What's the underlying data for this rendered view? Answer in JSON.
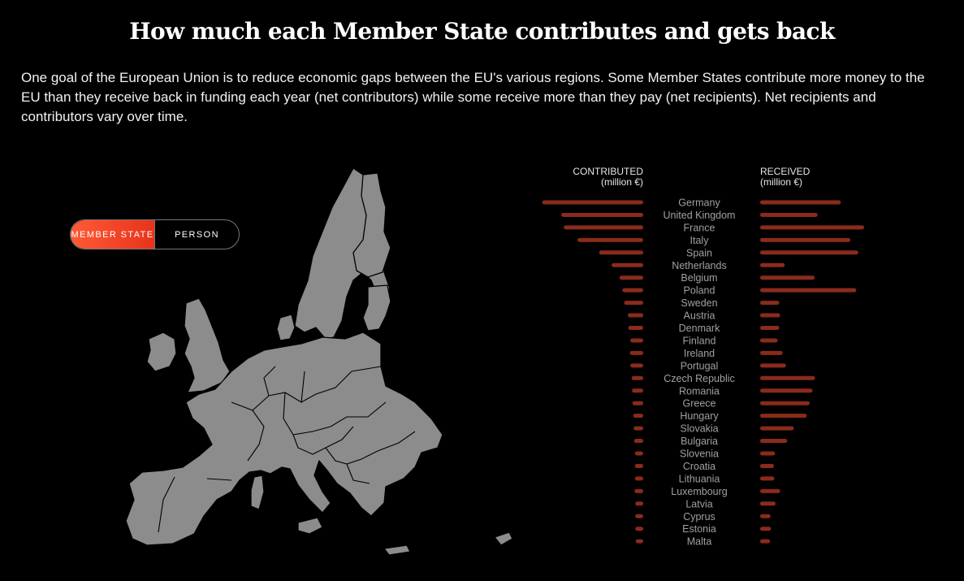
{
  "header": {
    "title": "How much each Member State contributes and gets back",
    "intro": "One goal of the European Union is to reduce economic gaps between the EU's various regions. Some Member States contribute more money to the EU than they receive back in funding each year (net contributors) while some receive more than they pay (net recipients). Net recipients and contributors vary over time."
  },
  "toggle": {
    "options": [
      "MEMBER STATE",
      "PERSON"
    ],
    "selected": "MEMBER STATE"
  },
  "colors": {
    "accent": "#ff4a2a",
    "bar": "#8a2b1c",
    "land": "#8c8c8c",
    "background": "#000000"
  },
  "chart_data": {
    "type": "bar",
    "orientation": "horizontal-butterfly",
    "left_header": [
      "CONTRIBUTED",
      "(million €)"
    ],
    "right_header": [
      "RECEIVED",
      "(million €)"
    ],
    "categories": [
      "Germany",
      "United Kingdom",
      "France",
      "Italy",
      "Spain",
      "Netherlands",
      "Belgium",
      "Poland",
      "Sweden",
      "Austria",
      "Denmark",
      "Finland",
      "Ireland",
      "Portugal",
      "Czech Republic",
      "Romania",
      "Greece",
      "Hungary",
      "Slovakia",
      "Bulgaria",
      "Slovenia",
      "Croatia",
      "Lithuania",
      "Luxembourg",
      "Latvia",
      "Cyprus",
      "Estonia",
      "Malta"
    ],
    "series": [
      {
        "values": [
          24300,
          19700,
          19100,
          15800,
          10600,
          7600,
          5700,
          5000,
          4600,
          3700,
          3600,
          3100,
          3200,
          3100,
          2800,
          2700,
          2600,
          2400,
          2300,
          2200,
          2000,
          2000,
          2000,
          2100,
          1900,
          1900,
          1900,
          1800
        ]
      },
      {
        "values": [
          19400,
          13800,
          25000,
          21700,
          23600,
          5900,
          13100,
          23100,
          4600,
          4800,
          4600,
          4200,
          5400,
          6200,
          13200,
          12600,
          11900,
          11200,
          8100,
          6500,
          3600,
          3300,
          3400,
          4800,
          3700,
          2500,
          2600,
          2400
        ]
      }
    ]
  }
}
